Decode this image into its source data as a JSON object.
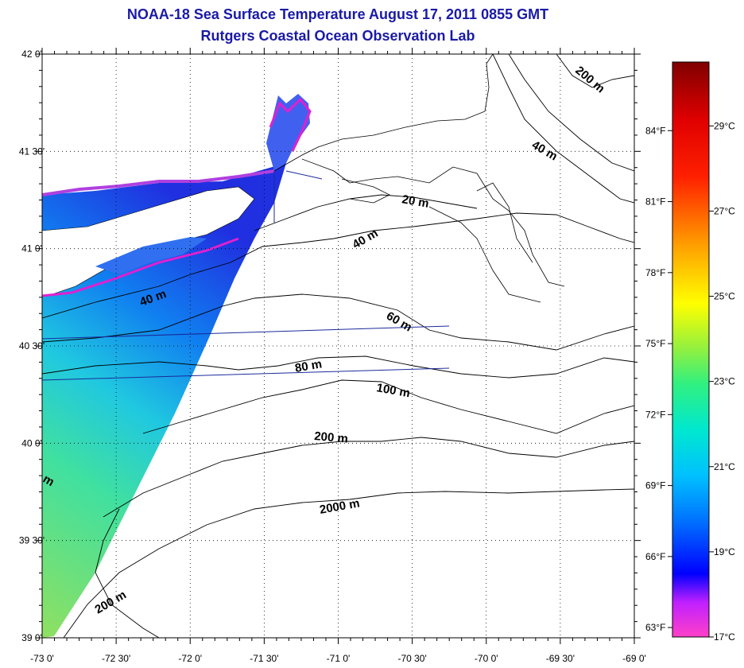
{
  "title": "NOAA-18 Sea Surface Temperature August 17, 2011 0855 GMT",
  "subtitle": "Rutgers Coastal Ocean Observation Lab",
  "lat_labels": [
    {
      "label": "42 0'",
      "value": 42.0
    },
    {
      "label": "41 30'",
      "value": 41.5
    },
    {
      "label": "41 0'",
      "value": 41.0
    },
    {
      "label": "40 30'",
      "value": 40.5
    },
    {
      "label": "40 0'",
      "value": 40.0
    },
    {
      "label": "39 30'",
      "value": 39.5
    },
    {
      "label": "39 0'",
      "value": 39.0
    }
  ],
  "lon_labels": [
    {
      "label": "-73 0'",
      "value": -73.0
    },
    {
      "label": "-72 30'",
      "value": -72.5
    },
    {
      "label": "-72 0'",
      "value": -72.0
    },
    {
      "label": "-71 30'",
      "value": -71.5
    },
    {
      "label": "-71 0'",
      "value": -71.0
    },
    {
      "label": "-70 30'",
      "value": -70.5
    },
    {
      "label": "-70 0'",
      "value": -70.0
    },
    {
      "label": "-69 30'",
      "value": -69.5
    },
    {
      "label": "-69 0'",
      "value": -69.0
    }
  ],
  "colorbar": {
    "range_c": [
      17,
      30.5
    ],
    "celsius": [
      {
        "label": "29°C",
        "value": 29
      },
      {
        "label": "27°C",
        "value": 27
      },
      {
        "label": "25°C",
        "value": 25
      },
      {
        "label": "23°C",
        "value": 23
      },
      {
        "label": "21°C",
        "value": 21
      },
      {
        "label": "19°C",
        "value": 19
      },
      {
        "label": "17°C",
        "value": 17
      }
    ],
    "fahrenheit": [
      {
        "label": "84°F",
        "value": 84
      },
      {
        "label": "81°F",
        "value": 81
      },
      {
        "label": "78°F",
        "value": 78
      },
      {
        "label": "75°F",
        "value": 75
      },
      {
        "label": "72°F",
        "value": 72
      },
      {
        "label": "69°F",
        "value": 69
      },
      {
        "label": "66°F",
        "value": 66
      },
      {
        "label": "63°F",
        "value": 63
      }
    ],
    "colors": [
      "#ff40c8",
      "#9000ff",
      "#0000ff",
      "#00a0ff",
      "#00e8e8",
      "#40f080",
      "#c0f040",
      "#ffff00",
      "#ffa000",
      "#ff3000",
      "#e00000",
      "#800000"
    ]
  },
  "contour_labels": {
    "m20": "20 m",
    "m40_a": "40 m",
    "m40_b": "40 m",
    "m40_c": "40 m",
    "m60": "60 m",
    "m80": "80 m",
    "m100": "100 m",
    "m200_a": "200 m",
    "m200_b": "200 m",
    "m200_c": "200 m",
    "m2000": "2000 m",
    "partial": "m"
  },
  "colors": {
    "title": "#1a1aa6",
    "contour": "#000000",
    "track": "#1a2a9a"
  }
}
